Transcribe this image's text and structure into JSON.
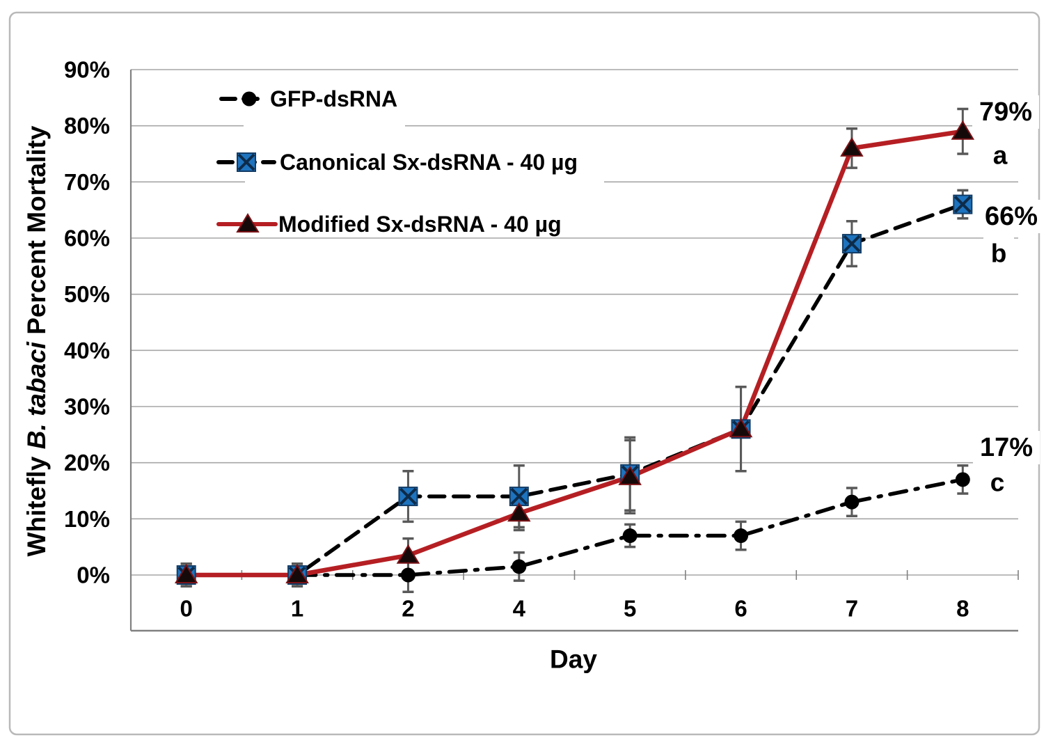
{
  "figure": {
    "background": "#ffffff",
    "border_color": "#b9b9b9"
  },
  "chart_data": {
    "type": "line",
    "title": "",
    "xlabel": "Day",
    "ylabel": "Whitefly B. tabaci Percent Mortality",
    "ylabel_parts": {
      "prefix": "Whitefly ",
      "italic": "B. tabaci",
      "suffix": " Percent Mortality"
    },
    "categories": [
      "0",
      "1",
      "2",
      "4",
      "5",
      "6",
      "7",
      "8"
    ],
    "y_tick_labels": [
      "0%",
      "10%",
      "20%",
      "30%",
      "40%",
      "50%",
      "60%",
      "70%",
      "80%",
      "90%"
    ],
    "y_tick_values": [
      0,
      10,
      20,
      30,
      40,
      50,
      60,
      70,
      80,
      90
    ],
    "ylim": [
      -10,
      90
    ],
    "grid": true,
    "gridline_color": "#a6a6a6",
    "axis_color": "#808080",
    "error_bar_color": "#595959",
    "legend_position": "inside-top-left",
    "series": [
      {
        "name": "GFP-dsRNA",
        "values": [
          0,
          0,
          0,
          1.5,
          7,
          7,
          13,
          17
        ],
        "errors": [
          2,
          2,
          3,
          2.5,
          2,
          2.5,
          2.5,
          2.5
        ],
        "line_color": "#000000",
        "line_style": "dash-dot",
        "marker": "circle",
        "marker_color": "#000000"
      },
      {
        "name": "Canonical Sx-dsRNA - 40 µg",
        "values": [
          0,
          0,
          14,
          14,
          18,
          26,
          59,
          66
        ],
        "errors": [
          2,
          2,
          4.5,
          5.5,
          6.5,
          7.5,
          4,
          2.5
        ],
        "line_color": "#000000",
        "line_style": "dashed",
        "marker": "square-x",
        "marker_color": "#1E73BE"
      },
      {
        "name": "Modified Sx-dsRNA - 40 µg",
        "values": [
          0,
          0,
          3.5,
          11,
          17.5,
          26,
          76,
          79
        ],
        "errors": [
          2,
          2,
          3,
          3,
          6.5,
          7.5,
          3.5,
          4
        ],
        "line_color": "#B51F23",
        "line_style": "solid",
        "marker": "triangle",
        "marker_color": "#16090a"
      }
    ],
    "annotations": [
      {
        "text": "79%",
        "sub": "a",
        "series": "Modified Sx-dsRNA - 40 µg"
      },
      {
        "text": "66%",
        "sub": "b",
        "series": "Canonical Sx-dsRNA - 40 µg"
      },
      {
        "text": "17%",
        "sub": "c",
        "series": "GFP-dsRNA"
      }
    ]
  }
}
